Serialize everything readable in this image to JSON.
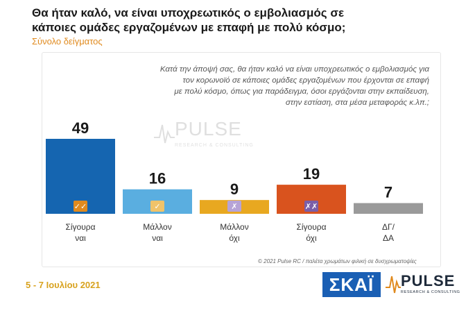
{
  "header": {
    "title_line1": "Θα ήταν καλό, να είναι υποχρεωτικός ο εμβολιασμός σε",
    "title_line2": "κάποιες ομάδες εργαζομένων με επαφή με πολύ κόσμο;",
    "subtitle": "Σύνολο δείγματος"
  },
  "question": {
    "line1": "Κατά την άποψή σας, θα ήταν καλό να είναι υποχρεωτικός ο εμβολιασμός για",
    "line2": "τον κορωνοϊό σε κάποιες ομάδες εργαζομένων που έρχονται σε επαφή",
    "line3": "με πολύ κόσμο, όπως για παράδειγμα, όσοι εργάζονται στην εκπαίδευση,",
    "line4": "στην εστίαση, στα μέσα μεταφοράς κ.λπ.;"
  },
  "chart_data": {
    "type": "bar",
    "title": "Θα ήταν καλό, να είναι υποχρεωτικός ο εμβολιασμός σε κάποιες ομάδες εργαζομένων με επαφή με πολύ κόσμο;",
    "categories": [
      [
        "Σίγουρα",
        "ναι"
      ],
      [
        "Μάλλον",
        "ναι"
      ],
      [
        "Μάλλον",
        "όχι"
      ],
      [
        "Σίγουρα",
        "όχι"
      ],
      [
        "ΔΓ/",
        "ΔΑ"
      ]
    ],
    "values": [
      49,
      16,
      9,
      19,
      7
    ],
    "colors": [
      "#1565b0",
      "#5aaee0",
      "#e8a820",
      "#d9531e",
      "#9a9a9a"
    ],
    "badges": [
      "✓✓",
      "✓",
      "✗",
      "✗✗",
      ""
    ],
    "badge_colors": [
      "#e08a1e",
      "#f0c36a",
      "#b6a3d6",
      "#7b5ea7",
      ""
    ],
    "ylim": [
      0,
      49
    ],
    "xlabel": "",
    "ylabel": ""
  },
  "watermark": {
    "text": "PULSE",
    "sub": "RESEARCH & CONSULTING"
  },
  "footer": {
    "copyright": "© 2021 Pulse RC  /  παλέτα χρωμάτων φιλική σε δυσχρωματοψίες",
    "date": "5 - 7 Ιουλίου  2021",
    "skai_logo": "ΣΚΑΪ",
    "pulse_logo": "PULSE",
    "pulse_sub": "RESEARCH & CONSULTING"
  }
}
